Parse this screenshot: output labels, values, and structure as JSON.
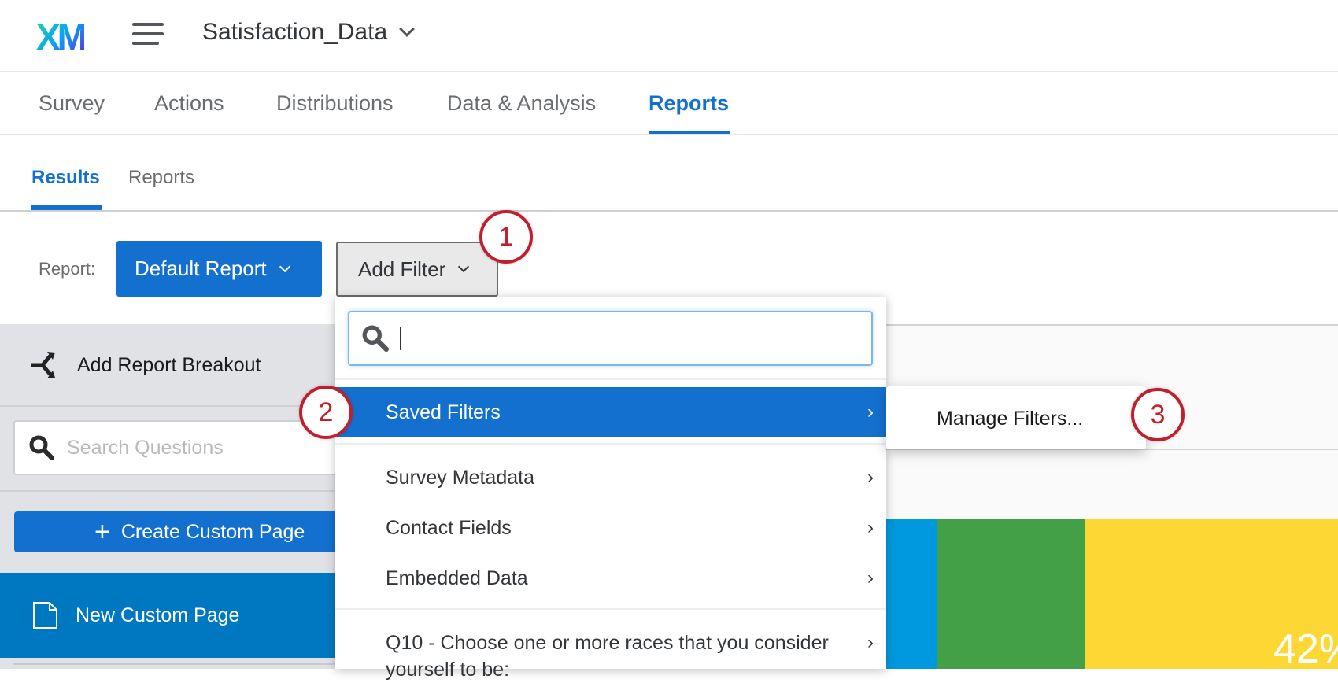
{
  "header": {
    "logo": "XM",
    "project_title": "Satisfaction_Data"
  },
  "nav": {
    "tabs": [
      {
        "label": "Survey"
      },
      {
        "label": "Actions"
      },
      {
        "label": "Distributions"
      },
      {
        "label": "Data & Analysis"
      },
      {
        "label": "Reports",
        "active": true
      }
    ]
  },
  "subnav": {
    "tabs": [
      {
        "label": "Results",
        "active": true
      },
      {
        "label": "Reports"
      }
    ]
  },
  "toolbar": {
    "report_label": "Report:",
    "report_value": "Default Report",
    "add_filter": "Add Filter"
  },
  "sidebar": {
    "breakout": "Add Report Breakout",
    "search_placeholder": "Search Questions",
    "create_button": "Create Custom Page",
    "pages": [
      {
        "label": "New Custom Page"
      }
    ]
  },
  "filter_menu": {
    "search_value": "",
    "items": [
      {
        "label": "Saved Filters",
        "highlighted": true
      },
      {
        "label": "Survey Metadata"
      },
      {
        "label": "Contact Fields"
      },
      {
        "label": "Embedded Data"
      },
      {
        "label": "Q10 - Choose one or more races that you consider yourself to be:"
      }
    ]
  },
  "submenu": {
    "items": [
      {
        "label": "Manage Filters..."
      }
    ]
  },
  "callouts": [
    "1",
    "2",
    "3"
  ],
  "chart": {
    "label": "42%",
    "colors": [
      "#0099e0",
      "#43a047",
      "#fdd835"
    ]
  },
  "colors": {
    "accent": "#1470cf",
    "callout": "#c0202e",
    "sidebar_bg": "#e1e2e6",
    "selected_page": "#0078c1"
  }
}
